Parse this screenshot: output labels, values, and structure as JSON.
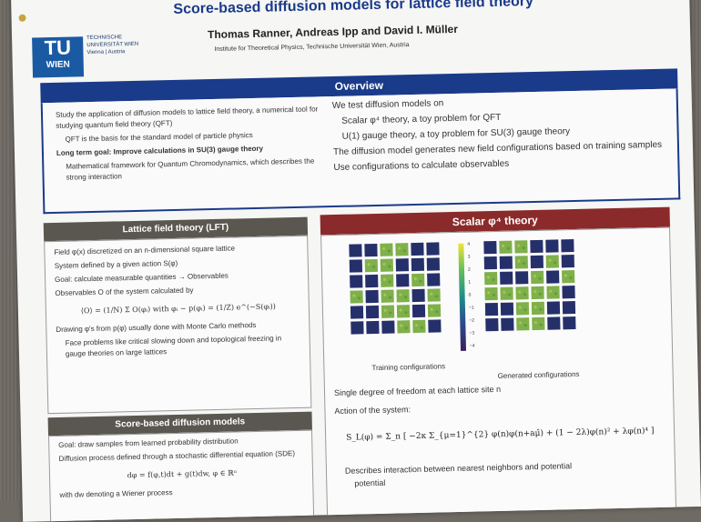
{
  "header": {
    "title": "Score-based diffusion models for lattice field theory",
    "authors": "Thomas Ranner, Andreas Ipp and David I. Müller",
    "institute": "Institute for Theoretical Physics, Technische Universität Wien, Austria",
    "logo_top": "TU",
    "logo_bottom": "WIEN",
    "university": "TECHNISCHE UNIVERSITÄT WIEN Vienna | Austria"
  },
  "overview": {
    "heading": "Overview",
    "left": [
      "Study the application of diffusion models to lattice field theory, a numerical tool for studying quantum field theory (QFT)",
      "QFT is the basis for the standard model of particle physics",
      "Long term goal: Improve calculations in SU(3) gauge theory",
      "Mathematical framework for Quantum Chromodynamics, which describes the strong interaction"
    ],
    "right": [
      "We test diffusion models on",
      "Scalar φ⁴ theory, a toy problem for QFT",
      "U(1) gauge theory, a toy problem for SU(3) gauge theory",
      "The diffusion model generates new field configurations based on training samples",
      "Use configurations to calculate observables"
    ]
  },
  "lft": {
    "heading": "Lattice field theory (LFT)",
    "items": [
      "Field φ(x) discretized on an n-dimensional square lattice",
      "System defined by a given action S(φ)",
      "Goal: calculate measurable quantities → Observables",
      "Observables O of the system calculated by"
    ],
    "equation": "⟨O⟩ = (1/N) Σ O(φᵢ) with φᵢ ~ p(φᵢ) = (1/Z) e^(−S(φᵢ))",
    "items2": [
      "Drawing φ's from p(φ) usually done with Monte Carlo methods",
      "Face problems like critical slowing down and topological freezing in gauge theories on large lattices"
    ]
  },
  "sbdm": {
    "heading": "Score-based diffusion models",
    "items": [
      "Goal: draw samples from learned probability distribution",
      "Diffusion process defined through a stochastic differential equation (SDE)"
    ],
    "equation": "dφ = f(φ,t)dt + g(t)dw,  φ ∈ ℝⁿ",
    "tail": "with dw denoting a Wiener process"
  },
  "scalar": {
    "heading": "Scalar φ⁴ theory",
    "caption_left": "Training configurations",
    "caption_right": "Generated configurations",
    "colorbar_ticks": [
      "4",
      "3",
      "2",
      "1",
      "0",
      "−1",
      "−2",
      "−3",
      "−4"
    ],
    "items": [
      "Single degree of freedom at each lattice site n",
      "Action of the system:"
    ],
    "action": "S_L(φ) = Σ_n [ −2κ Σ_{μ=1}^{2} φ(n)φ(n+aμ̂) + (1 − 2λ)φ(n)² + λφ(n)⁴ ]",
    "tail": "Describes interaction between nearest neighbors and potential",
    "tail_cut": "potential"
  }
}
